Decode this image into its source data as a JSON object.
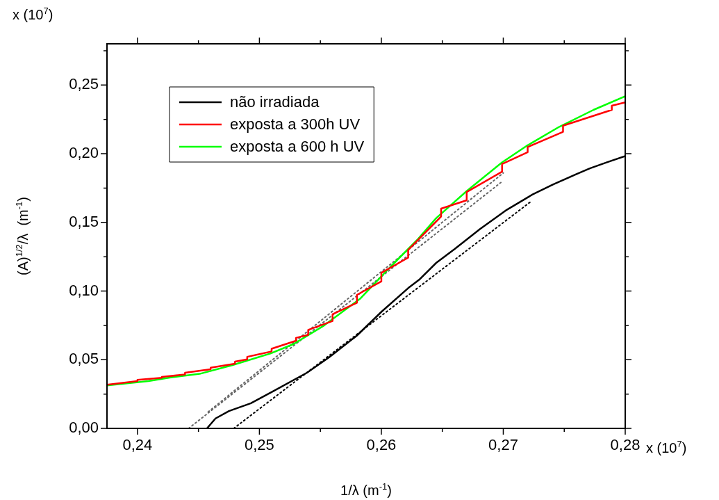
{
  "chart_data": {
    "type": "line",
    "xlabel": "1/λ (m$^{-1}$)",
    "ylabel": "(A)$^{1/2}$/λ  (m$^{-1}$)",
    "annotations": [
      "x (10$^{7}$)",
      "x (10$^{7}$)"
    ],
    "xlim": [
      0.2375,
      0.28
    ],
    "ylim": [
      0,
      0.28
    ],
    "xticks": [
      {
        "value": 0.24,
        "label": "0,24"
      },
      {
        "value": 0.245,
        "label": null
      },
      {
        "value": 0.25,
        "label": "0,25"
      },
      {
        "value": 0.255,
        "label": null
      },
      {
        "value": 0.26,
        "label": "0,26"
      },
      {
        "value": 0.265,
        "label": null
      },
      {
        "value": 0.27,
        "label": "0,27"
      },
      {
        "value": 0.275,
        "label": null
      },
      {
        "value": 0.28,
        "label": "0,28"
      }
    ],
    "yticks": [
      {
        "value": 0,
        "label": "0,00"
      },
      {
        "value": 0.025,
        "label": null
      },
      {
        "value": 0.05,
        "label": "0,05"
      },
      {
        "value": 0.075,
        "label": null
      },
      {
        "value": 0.1,
        "label": "0,10"
      },
      {
        "value": 0.125,
        "label": null
      },
      {
        "value": 0.15,
        "label": "0,15"
      },
      {
        "value": 0.175,
        "label": null
      },
      {
        "value": 0.2,
        "label": "0,20"
      },
      {
        "value": 0.225,
        "label": null
      },
      {
        "value": 0.25,
        "label": "0,25"
      },
      {
        "value": 0.275,
        "label": null
      }
    ],
    "grid": false,
    "legend": "top left",
    "marker": "none",
    "line_style": "solid",
    "series": [
      {
        "name": "não irradiada",
        "color": "#000000",
        "x": [
          0.2457,
          0.2464,
          0.2475,
          0.2493,
          0.2511,
          0.2539,
          0.2557,
          0.258,
          0.26,
          0.2622,
          0.2631,
          0.2645,
          0.266,
          0.2681,
          0.2703,
          0.2724,
          0.2741,
          0.276,
          0.2771,
          0.2785,
          0.28
        ],
        "values": [
          0,
          0.0072,
          0.0126,
          0.0183,
          0.0269,
          0.0405,
          0.0516,
          0.0676,
          0.0848,
          0.1021,
          0.1082,
          0.1205,
          0.1305,
          0.1452,
          0.1592,
          0.1703,
          0.1777,
          0.1851,
          0.1893,
          0.1937,
          0.1982
        ]
      },
      {
        "name": "exposta a 300h UV",
        "color": "#ff0000",
        "x": [
          0.2375,
          0.24,
          0.24,
          0.242,
          0.242,
          0.2439,
          0.2439,
          0.246,
          0.246,
          0.248,
          0.248,
          0.249,
          0.249,
          0.251,
          0.251,
          0.253,
          0.253,
          0.254,
          0.254,
          0.256,
          0.256,
          0.258,
          0.258,
          0.26,
          0.26,
          0.2622,
          0.2622,
          0.2649,
          0.2649,
          0.267,
          0.267,
          0.2699,
          0.2699,
          0.272,
          0.272,
          0.2749,
          0.2749,
          0.2789,
          0.2789,
          0.28
        ],
        "values": [
          0.0318,
          0.0344,
          0.0353,
          0.0368,
          0.0375,
          0.0392,
          0.0405,
          0.043,
          0.0442,
          0.0471,
          0.0486,
          0.0503,
          0.0521,
          0.056,
          0.058,
          0.0638,
          0.0659,
          0.0681,
          0.0717,
          0.0782,
          0.0831,
          0.0915,
          0.0972,
          0.107,
          0.1132,
          0.1243,
          0.1299,
          0.1543,
          0.16,
          0.1661,
          0.1721,
          0.1869,
          0.1925,
          0.2011,
          0.2048,
          0.2159,
          0.2204,
          0.2319,
          0.2349,
          0.2374
        ]
      },
      {
        "name": "exposta a 600 h UV",
        "color": "#00ff00",
        "x": [
          0.2375,
          0.2409,
          0.2429,
          0.2451,
          0.2478,
          0.2509,
          0.2528,
          0.2553,
          0.2583,
          0.2608,
          0.263,
          0.2645,
          0.267,
          0.2699,
          0.2719,
          0.2746,
          0.2774,
          0.28
        ],
        "values": [
          0.0313,
          0.0344,
          0.0373,
          0.0397,
          0.0461,
          0.0545,
          0.0614,
          0.0749,
          0.0947,
          0.1181,
          0.1378,
          0.1531,
          0.1728,
          0.1937,
          0.2056,
          0.2196,
          0.2319,
          0.2418
        ]
      },
      {
        "color": "#000000",
        "line_style": "dotted",
        "x": [
          0.2479,
          0.2723
        ],
        "values": [
          0,
          0.1654
        ]
      },
      {
        "color": "#666666",
        "line_style": "dotted",
        "x": [
          0.2442,
          0.2698
        ],
        "values": [
          0,
          0.179
        ]
      },
      {
        "color": "#666666",
        "line_style": "dotted",
        "x": [
          0.2458,
          0.27
        ],
        "values": [
          0.012,
          0.186
        ]
      }
    ]
  }
}
